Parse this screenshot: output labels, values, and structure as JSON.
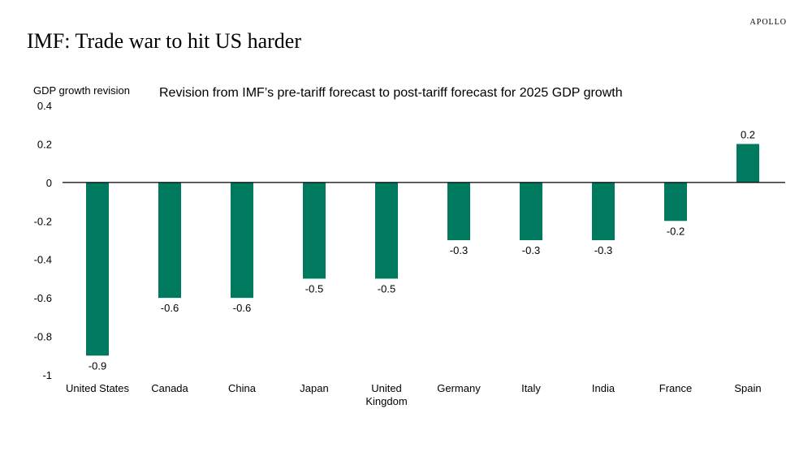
{
  "brand": "APOLLO",
  "title": "IMF: Trade war to hit US harder",
  "chart_data": {
    "type": "bar",
    "title": "Revision from IMF’s pre-tariff forecast to post-tariff forecast for 2025 GDP growth",
    "ylabel": "GDP growth revision",
    "xlabel": "",
    "ylim": [
      -1,
      0.4
    ],
    "yticks": [
      0.4,
      0.2,
      0,
      -0.2,
      -0.4,
      -0.6,
      -0.8,
      -1
    ],
    "ytick_labels": [
      "0.4",
      "0.2",
      "0",
      "-0.2",
      "-0.4",
      "-0.6",
      "-0.8",
      "-1"
    ],
    "categories": [
      [
        "United States"
      ],
      [
        "Canada"
      ],
      [
        "China"
      ],
      [
        "Japan"
      ],
      [
        "United",
        "Kingdom"
      ],
      [
        "Germany"
      ],
      [
        "Italy"
      ],
      [
        "India"
      ],
      [
        "France"
      ],
      [
        "Spain"
      ]
    ],
    "values": [
      -0.9,
      -0.6,
      -0.6,
      -0.5,
      -0.5,
      -0.3,
      -0.3,
      -0.3,
      -0.2,
      0.2
    ],
    "data_labels": [
      "-0.9",
      "-0.6",
      "-0.6",
      "-0.5",
      "-0.5",
      "-0.3",
      "-0.3",
      "-0.3",
      "-0.2",
      "0.2"
    ],
    "bar_color": "#007a5e",
    "grid": false,
    "legend": "none"
  }
}
